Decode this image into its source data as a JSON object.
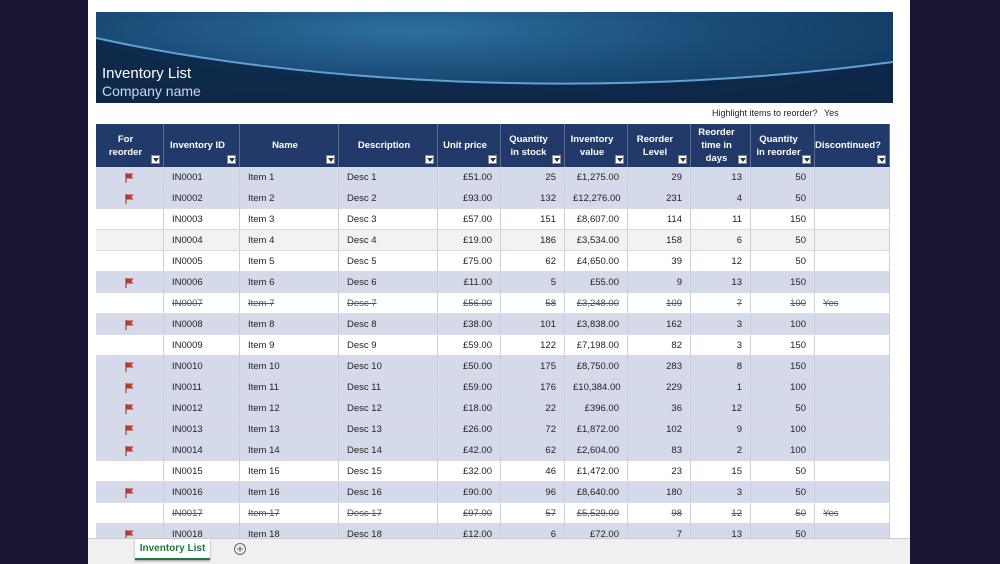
{
  "banner": {
    "title": "Inventory List",
    "subtitle": "Company name"
  },
  "highlight": {
    "label": "Highlight items to reorder?",
    "value": "Yes"
  },
  "table": {
    "columns": [
      "For reorder",
      "Inventory ID",
      "Name",
      "Description",
      "Unit price",
      "Quantity in stock",
      "Inventory value",
      "Reorder Level",
      "Reorder time in days",
      "Quantity in reorder",
      "Discontinued?"
    ],
    "rows": [
      {
        "flag": true,
        "cells": [
          "IN0001",
          "Item 1",
          "Desc 1",
          "£51.00",
          "25",
          "£1,275.00",
          "29",
          "13",
          "50",
          null
        ]
      },
      {
        "flag": true,
        "cells": [
          "IN0002",
          "Item 2",
          "Desc 2",
          "£93.00",
          "132",
          "£12,276.00",
          "231",
          "4",
          "50",
          null
        ]
      },
      {
        "flag": false,
        "cells": [
          "IN0003",
          "Item 3",
          "Desc 3",
          "£57.00",
          "151",
          "£8,607.00",
          "114",
          "11",
          "150",
          null
        ]
      },
      {
        "flag": false,
        "cells": [
          "IN0004",
          "Item 4",
          "Desc 4",
          "£19.00",
          "186",
          "£3,534.00",
          "158",
          "6",
          "50",
          null
        ]
      },
      {
        "flag": false,
        "cells": [
          "IN0005",
          "Item 5",
          "Desc 5",
          "£75.00",
          "62",
          "£4,650.00",
          "39",
          "12",
          "50",
          null
        ]
      },
      {
        "flag": true,
        "cells": [
          "IN0006",
          "Item 6",
          "Desc 6",
          "£11.00",
          "5",
          "£55.00",
          "9",
          "13",
          "150",
          null
        ]
      },
      {
        "flag": false,
        "cells": [
          "IN0007",
          "Item 7",
          "Desc 7",
          "£56.00",
          "58",
          "£3,248.00",
          "109",
          "7",
          "100",
          "Yes"
        ]
      },
      {
        "flag": true,
        "cells": [
          "IN0008",
          "Item 8",
          "Desc 8",
          "£38.00",
          "101",
          "£3,838.00",
          "162",
          "3",
          "100",
          null
        ]
      },
      {
        "flag": false,
        "cells": [
          "IN0009",
          "Item 9",
          "Desc 9",
          "£59.00",
          "122",
          "£7,198.00",
          "82",
          "3",
          "150",
          null
        ]
      },
      {
        "flag": true,
        "cells": [
          "IN0010",
          "Item 10",
          "Desc 10",
          "£50.00",
          "175",
          "£8,750.00",
          "283",
          "8",
          "150",
          null
        ]
      },
      {
        "flag": true,
        "cells": [
          "IN0011",
          "Item 11",
          "Desc 11",
          "£59.00",
          "176",
          "£10,384.00",
          "229",
          "1",
          "100",
          null
        ]
      },
      {
        "flag": true,
        "cells": [
          "IN0012",
          "Item 12",
          "Desc 12",
          "£18.00",
          "22",
          "£396.00",
          "36",
          "12",
          "50",
          null
        ]
      },
      {
        "flag": true,
        "cells": [
          "IN0013",
          "Item 13",
          "Desc 13",
          "£26.00",
          "72",
          "£1,872.00",
          "102",
          "9",
          "100",
          null
        ]
      },
      {
        "flag": true,
        "cells": [
          "IN0014",
          "Item 14",
          "Desc 14",
          "£42.00",
          "62",
          "£2,604.00",
          "83",
          "2",
          "100",
          null
        ]
      },
      {
        "flag": false,
        "cells": [
          "IN0015",
          "Item 15",
          "Desc 15",
          "£32.00",
          "46",
          "£1,472.00",
          "23",
          "15",
          "50",
          null
        ]
      },
      {
        "flag": true,
        "cells": [
          "IN0016",
          "Item 16",
          "Desc 16",
          "£90.00",
          "96",
          "£8,640.00",
          "180",
          "3",
          "50",
          null
        ]
      },
      {
        "flag": false,
        "cells": [
          "IN0017",
          "Item 17",
          "Desc 17",
          "£97.00",
          "57",
          "£5,529.00",
          "98",
          "12",
          "50",
          "Yes"
        ]
      },
      {
        "flag": true,
        "cells": [
          "IN0018",
          "Item 18",
          "Desc 18",
          "£12.00",
          "6",
          "£72.00",
          "7",
          "13",
          "50",
          null
        ]
      }
    ]
  },
  "sheet_tab": "Inventory List"
}
